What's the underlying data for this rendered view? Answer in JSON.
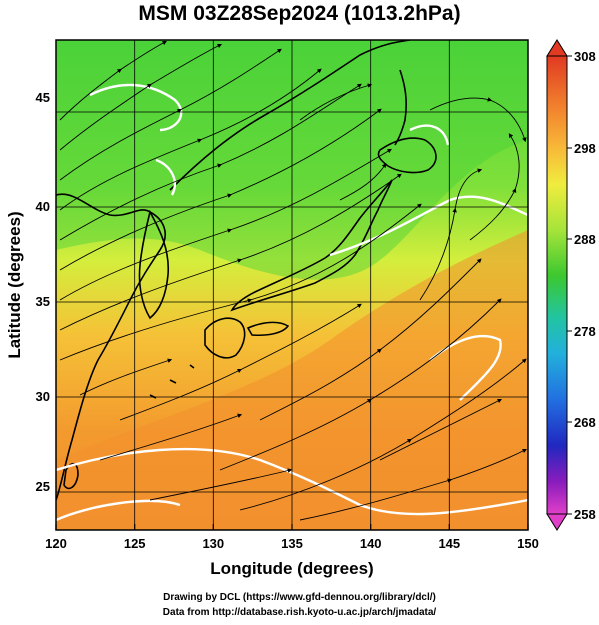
{
  "title": "MSM 03Z28Sep2024 (1013.2hPa)",
  "x_axis": {
    "label": "Longitude (degrees)",
    "ticks": [
      "120",
      "125",
      "130",
      "135",
      "140",
      "145",
      "150"
    ]
  },
  "y_axis": {
    "label": "Latitude  (degrees)",
    "ticks": [
      "25",
      "30",
      "35",
      "40",
      "45"
    ]
  },
  "colorbar": {
    "labels": [
      "308",
      "298",
      "288",
      "278",
      "268",
      "258"
    ],
    "colors": [
      "#e03a22",
      "#f08a30",
      "#f6c83a",
      "#e8f040",
      "#9ae03a",
      "#40cc30",
      "#28c28c",
      "#20b4d4",
      "#2278e0",
      "#2030c8",
      "#5018b0",
      "#a020c0",
      "#e040c8"
    ]
  },
  "credits": {
    "line1": "Drawing by DCL (https://www.gfd-dennou.org/library/dcl/)",
    "line2": "Data from http://database.rish.kyoto-u.ac.jp/arch/jmadata/"
  },
  "map_colors": {
    "warm": "#f3902e",
    "mid": "#d7ef3a",
    "cool": "#52d83a",
    "streamline": "#000000",
    "contour": "#ffffff"
  }
}
